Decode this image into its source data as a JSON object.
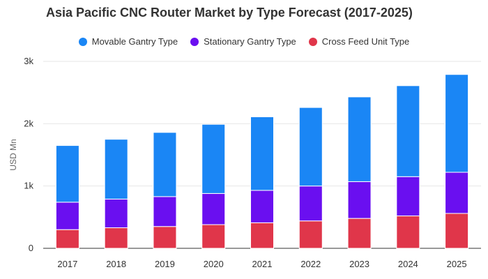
{
  "chart_data": {
    "type": "bar",
    "stacked": true,
    "title": "Asia Pacific CNC Router Market by Type Forecast (2017-2025)",
    "ylabel": "USD Mn",
    "categories": [
      "2017",
      "2018",
      "2019",
      "2020",
      "2021",
      "2022",
      "2023",
      "2024",
      "2025"
    ],
    "ylim": [
      0,
      3000
    ],
    "yticks": [
      0,
      1000,
      2000,
      3000
    ],
    "ytick_labels": [
      "0",
      "1k",
      "2k",
      "3k"
    ],
    "grid": true,
    "legend_position": "top-center",
    "series": [
      {
        "name": "Movable Gantry Type",
        "color": "#1a86f5",
        "values": [
          910,
          960,
          1030,
          1110,
          1180,
          1260,
          1360,
          1460,
          1570
        ]
      },
      {
        "name": "Stationary Gantry Type",
        "color": "#6a0ff0",
        "values": [
          440,
          460,
          480,
          500,
          520,
          560,
          590,
          630,
          660
        ]
      },
      {
        "name": "Cross Feed Unit Type",
        "color": "#e0364a",
        "values": [
          300,
          330,
          350,
          380,
          410,
          440,
          480,
          520,
          560
        ]
      }
    ]
  }
}
